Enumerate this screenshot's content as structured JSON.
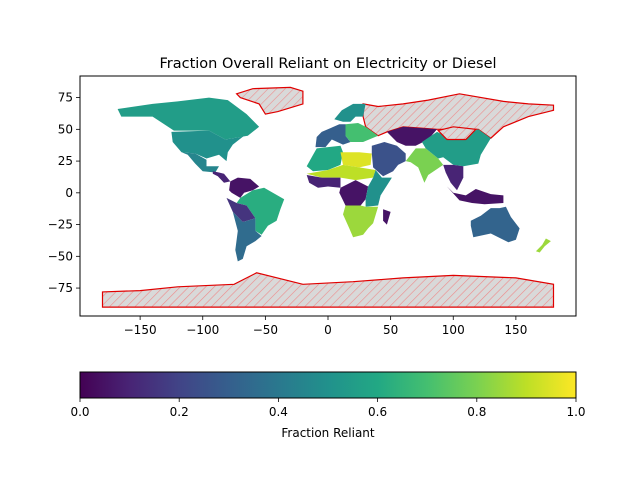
{
  "chart_data": {
    "type": "heatmap",
    "title": "Fraction Overall Reliant on Electricity or Diesel",
    "xlabel": "",
    "ylabel": "",
    "xlim": [
      -198,
      198
    ],
    "ylim": [
      -97,
      92
    ],
    "xticks": [
      -150,
      -100,
      -50,
      0,
      50,
      100,
      150
    ],
    "yticks": [
      -75,
      -50,
      -25,
      0,
      25,
      50,
      75
    ],
    "xtick_labels": [
      "−150",
      "−100",
      "−50",
      "0",
      "50",
      "100",
      "150"
    ],
    "ytick_labels": [
      "−75",
      "−50",
      "−25",
      "0",
      "25",
      "50",
      "75"
    ],
    "colormap": "viridis",
    "no_data_style": "red outline with grey hatch",
    "colorbar": {
      "label": "Fraction Reliant",
      "range": [
        0,
        1
      ],
      "ticks": [
        0.0,
        0.2,
        0.4,
        0.6,
        0.8,
        1.0
      ],
      "tick_labels": [
        "0.0",
        "0.2",
        "0.4",
        "0.6",
        "0.8",
        "1.0"
      ],
      "orientation": "horizontal",
      "position": "bottom"
    },
    "regions": [
      {
        "region": "North America (Canada)",
        "value": 0.55
      },
      {
        "region": "United States",
        "value": 0.5
      },
      {
        "region": "Mexico",
        "value": 0.45
      },
      {
        "region": "Central America",
        "value": 0.1
      },
      {
        "region": "Colombia / Venezuela",
        "value": 0.05
      },
      {
        "region": "Brazil",
        "value": 0.62
      },
      {
        "region": "Peru / Bolivia",
        "value": 0.15
      },
      {
        "region": "Argentina / Chile",
        "value": 0.35
      },
      {
        "region": "Greenland",
        "value": null
      },
      {
        "region": "Russia",
        "value": null
      },
      {
        "region": "Western Europe",
        "value": 0.3
      },
      {
        "region": "Scandinavia",
        "value": 0.5
      },
      {
        "region": "Eastern Europe",
        "value": 0.7
      },
      {
        "region": "North Africa (Morocco/Algeria)",
        "value": 0.6
      },
      {
        "region": "Libya / Egypt",
        "value": 0.95
      },
      {
        "region": "Sahel",
        "value": 0.9
      },
      {
        "region": "West Africa",
        "value": 0.1
      },
      {
        "region": "Central Africa",
        "value": 0.05
      },
      {
        "region": "East Africa",
        "value": 0.5
      },
      {
        "region": "Southern Africa",
        "value": 0.85
      },
      {
        "region": "Madagascar",
        "value": 0.05
      },
      {
        "region": "Middle East",
        "value": 0.25
      },
      {
        "region": "Kazakhstan / Central Asia",
        "value": 0.05
      },
      {
        "region": "India",
        "value": 0.8
      },
      {
        "region": "China",
        "value": 0.55
      },
      {
        "region": "Mongolia",
        "value": null
      },
      {
        "region": "Southeast Asia",
        "value": 0.1
      },
      {
        "region": "Indonesia",
        "value": 0.05
      },
      {
        "region": "Australia",
        "value": 0.32
      },
      {
        "region": "New Zealand",
        "value": 0.85
      },
      {
        "region": "Antarctica",
        "value": null
      }
    ]
  }
}
